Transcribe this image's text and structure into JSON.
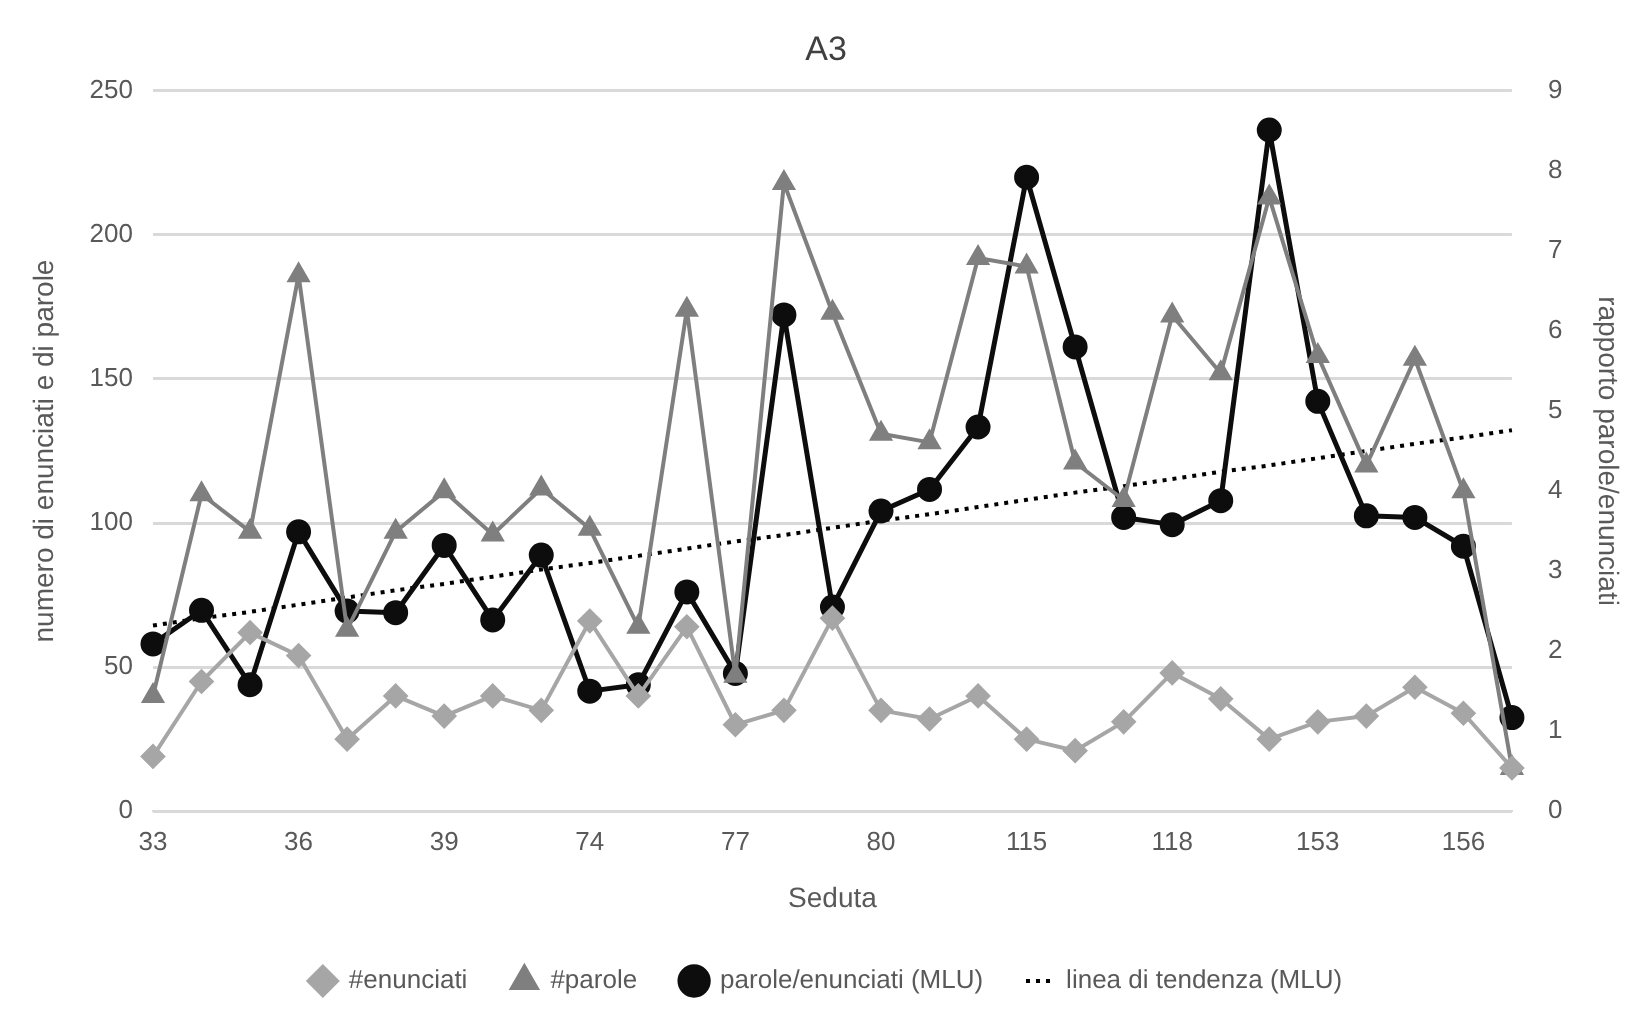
{
  "chart_data": {
    "type": "line",
    "title": "A3",
    "xlabel": "Seduta",
    "ylabel": "numero di enunciati e di parole",
    "y2label": "rapporto parole/enunciati",
    "categories": [
      "33",
      null,
      null,
      "36",
      null,
      null,
      "39",
      null,
      null,
      "74",
      null,
      null,
      "77",
      null,
      null,
      "80",
      null,
      null,
      "115",
      null,
      null,
      "118",
      null,
      null,
      "153",
      null,
      null,
      "156",
      null
    ],
    "series": [
      {
        "name": "#enunciati",
        "color": "#a6a6a6",
        "marker": "diamond",
        "values": [
          19,
          45,
          62,
          54,
          25,
          40,
          33,
          40,
          35,
          66,
          40,
          64,
          30,
          35,
          67,
          35,
          32,
          40,
          25,
          21,
          31,
          48,
          39,
          25,
          31,
          33,
          43,
          34,
          15
        ]
      },
      {
        "name": "#parole",
        "color": "#7f7f7f",
        "marker": "triangle",
        "values": [
          40,
          110,
          97,
          186,
          63,
          97,
          111,
          96,
          112,
          98,
          64,
          174,
          47,
          218,
          173,
          131,
          128,
          192,
          189,
          121,
          108,
          172,
          152,
          213,
          158,
          120,
          157,
          111,
          15
        ]
      },
      {
        "name": "parole/enunciati (MLU)",
        "color": "#0d0d0d",
        "marker": "circle",
        "axis": "y2",
        "values": [
          2.09,
          2.51,
          1.58,
          3.49,
          2.5,
          2.48,
          3.32,
          2.39,
          3.2,
          1.5,
          1.58,
          2.74,
          1.72,
          6.2,
          2.55,
          3.75,
          4.02,
          4.8,
          7.92,
          5.8,
          3.67,
          3.58,
          3.88,
          8.51,
          5.12,
          3.69,
          3.67,
          3.31,
          1.17
        ]
      },
      {
        "name": "linea di tendenza (MLU)",
        "color": "#000000",
        "marker": "none",
        "line_style": "dotted",
        "axis": "y2",
        "values": [
          2.32,
          2.41,
          2.49,
          2.58,
          2.67,
          2.76,
          2.84,
          2.93,
          3.02,
          3.1,
          3.19,
          3.28,
          3.37,
          3.45,
          3.54,
          3.63,
          3.71,
          3.8,
          3.89,
          3.98,
          4.06,
          4.15,
          4.24,
          4.32,
          4.41,
          4.5,
          4.59,
          4.67,
          4.76
        ]
      }
    ],
    "ylim": [
      0,
      250
    ],
    "yticks": [
      0,
      50,
      100,
      150,
      200,
      250
    ],
    "y2lim": [
      0,
      9
    ],
    "y2ticks": [
      0,
      1,
      2,
      3,
      4,
      5,
      6,
      7,
      8,
      9
    ],
    "grid": "y",
    "legend": "bottom",
    "line_style": "solid"
  }
}
